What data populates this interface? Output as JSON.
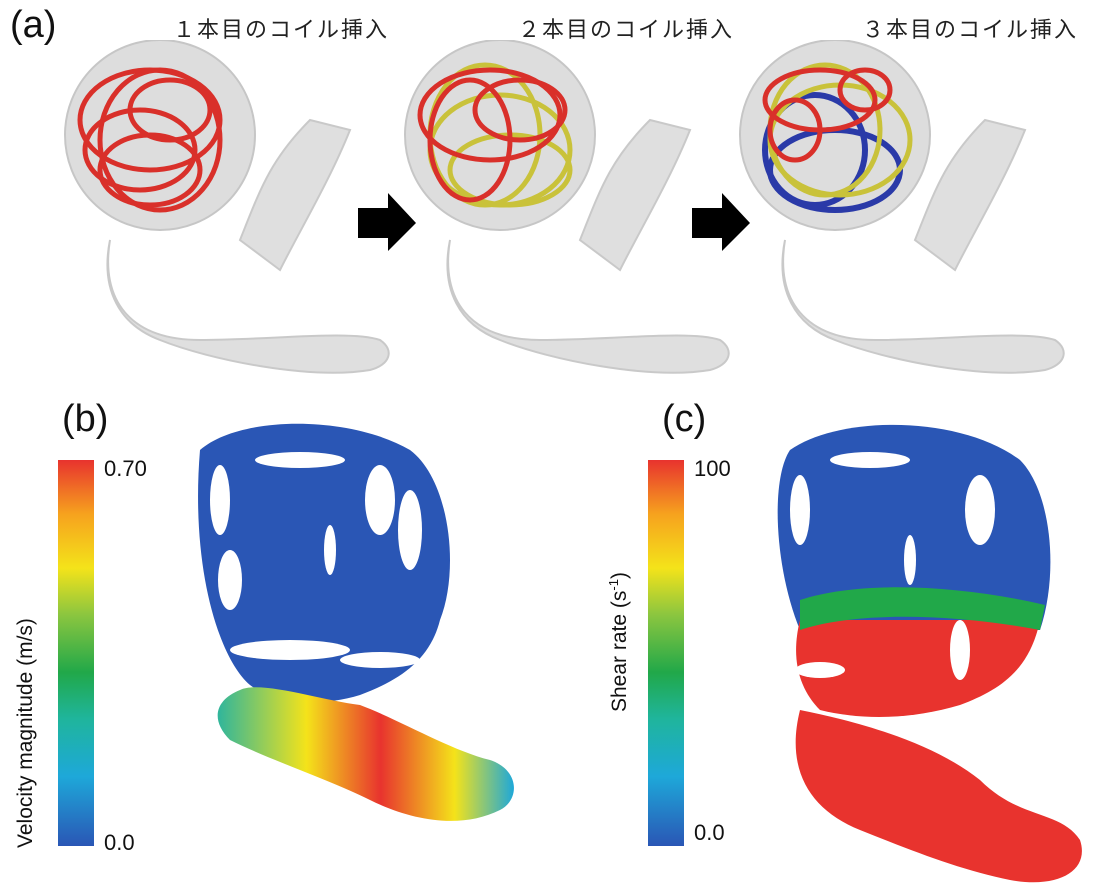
{
  "panels": {
    "a": {
      "letter": "(a)",
      "steps": [
        {
          "label": "１本目のコイル挿入"
        },
        {
          "label": "２本目のコイル挿入"
        },
        {
          "label": "３本目のコイル挿入"
        }
      ]
    },
    "b": {
      "letter": "(b)",
      "colorbar": {
        "title": "Velocity magnitude (m/s)",
        "max_label": "0.70",
        "min_label": "0.0"
      }
    },
    "c": {
      "letter": "(c)",
      "colorbar": {
        "title_main": "Shear rate (s",
        "title_sup": "-1",
        "title_end": ")",
        "max_label": "100",
        "min_label": "0.0"
      }
    }
  },
  "colors": {
    "coil_1": "#d9302a",
    "coil_2": "#c9c23a",
    "coil_3": "#2a3aa8",
    "vessel": "#d9d9d9",
    "low": "#2a56b5",
    "high": "#e8332e"
  }
}
